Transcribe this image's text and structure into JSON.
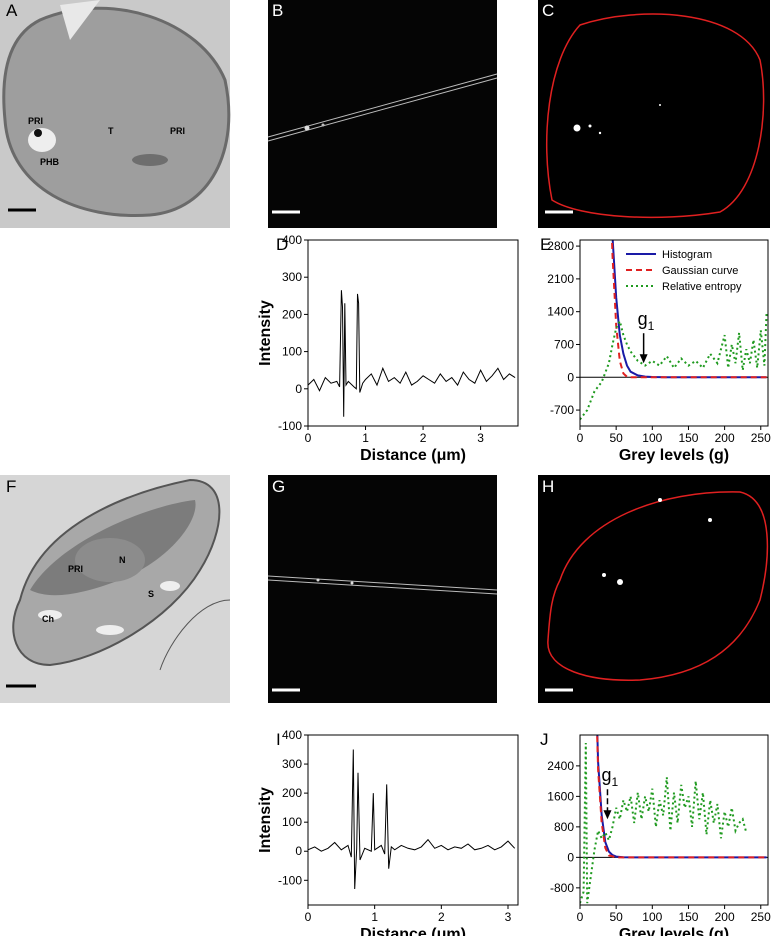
{
  "panels": [
    "A",
    "B",
    "C",
    "D",
    "E",
    "F",
    "G",
    "H",
    "I",
    "J"
  ],
  "micrograph_labels": {
    "A": [
      "PRI",
      "PHB",
      "T",
      "PRI"
    ],
    "F": [
      "N",
      "PRI",
      "S",
      "Ch"
    ]
  },
  "chart_data": [
    {
      "type": "line",
      "ylabel": "Intensity",
      "xlabel": "Distance (μm)",
      "xlim": [
        0,
        3.65
      ],
      "ylim": [
        -100,
        400
      ],
      "xticks": [
        0,
        1,
        2,
        3
      ],
      "yticks": [
        -100,
        0,
        100,
        200,
        300,
        400
      ],
      "series": [
        {
          "color": "#000000",
          "dash": "solid",
          "x": [
            0,
            0.1,
            0.2,
            0.3,
            0.4,
            0.5,
            0.55,
            0.58,
            0.6,
            0.62,
            0.64,
            0.66,
            0.7,
            0.8,
            0.84,
            0.86,
            0.88,
            0.9,
            0.95,
            1.0,
            1.1,
            1.2,
            1.3,
            1.4,
            1.5,
            1.6,
            1.7,
            1.8,
            1.9,
            2.0,
            2.1,
            2.2,
            2.3,
            2.4,
            2.5,
            2.6,
            2.7,
            2.8,
            2.9,
            3.0,
            3.1,
            3.2,
            3.3,
            3.4,
            3.5,
            3.6
          ],
          "values": [
            10,
            25,
            -5,
            30,
            15,
            20,
            5,
            265,
            220,
            -75,
            230,
            10,
            20,
            5,
            0,
            255,
            230,
            -10,
            15,
            25,
            40,
            10,
            55,
            20,
            30,
            15,
            45,
            10,
            20,
            35,
            25,
            15,
            40,
            20,
            30,
            10,
            45,
            25,
            15,
            50,
            20,
            35,
            55,
            25,
            40,
            30
          ]
        }
      ]
    },
    {
      "type": "line",
      "xlabel": "Grey levels (g)",
      "xlim": [
        0,
        260
      ],
      "ylim": [
        -1040,
        2930
      ],
      "xticks": [
        0,
        50,
        100,
        150,
        200,
        250
      ],
      "yticks": [
        -700,
        0,
        700,
        1400,
        2100,
        2800
      ],
      "legend": "upper right",
      "zero_line": true,
      "annotation": {
        "text": "g",
        "sub": "1",
        "x": 88,
        "y": 300
      },
      "series": [
        {
          "name": "Histogram",
          "color": "#1a1aa6",
          "dash": "solid",
          "x": [
            40,
            45,
            50,
            55,
            60,
            65,
            70,
            80,
            90,
            100,
            120,
            150,
            200,
            258
          ],
          "values": [
            6000,
            3000,
            1700,
            900,
            500,
            250,
            120,
            40,
            15,
            5,
            2,
            0,
            0,
            0
          ]
        },
        {
          "name": "Gaussian curve",
          "color": "#e02020",
          "dash": "dashed",
          "x": [
            40,
            45,
            50,
            55,
            60,
            65,
            70,
            100,
            258
          ],
          "values": [
            5000,
            2600,
            1100,
            350,
            80,
            10,
            0,
            0,
            0
          ]
        },
        {
          "name": "Relative entropy",
          "color": "#1f9a1f",
          "dash": "dotted",
          "x": [
            0,
            10,
            20,
            30,
            40,
            45,
            50,
            55,
            60,
            65,
            70,
            75,
            80,
            85,
            90,
            95,
            100,
            110,
            120,
            130,
            140,
            150,
            160,
            170,
            180,
            190,
            200,
            205,
            210,
            215,
            220,
            225,
            230,
            235,
            240,
            245,
            250,
            255,
            258
          ],
          "values": [
            -900,
            -700,
            -300,
            -100,
            300,
            700,
            1050,
            1200,
            900,
            700,
            550,
            450,
            350,
            300,
            250,
            300,
            350,
            250,
            450,
            200,
            400,
            250,
            350,
            200,
            500,
            300,
            900,
            200,
            700,
            300,
            950,
            150,
            600,
            300,
            800,
            200,
            1000,
            250,
            1400
          ]
        }
      ]
    },
    {
      "type": "line",
      "ylabel": "Intensity",
      "xlabel": "Distance (μm)",
      "xlim": [
        0,
        3.15
      ],
      "ylim": [
        -185,
        400
      ],
      "xticks": [
        0,
        1,
        2,
        3
      ],
      "yticks": [
        -100,
        0,
        100,
        200,
        300,
        400
      ],
      "series": [
        {
          "color": "#000000",
          "dash": "solid",
          "x": [
            0,
            0.1,
            0.2,
            0.3,
            0.4,
            0.5,
            0.6,
            0.65,
            0.68,
            0.7,
            0.73,
            0.75,
            0.78,
            0.85,
            0.95,
            0.98,
            1.0,
            1.1,
            1.15,
            1.18,
            1.21,
            1.25,
            1.3,
            1.4,
            1.5,
            1.6,
            1.7,
            1.8,
            1.9,
            2.0,
            2.1,
            2.2,
            2.3,
            2.4,
            2.5,
            2.6,
            2.7,
            2.8,
            2.9,
            3.0,
            3.1
          ],
          "values": [
            5,
            15,
            0,
            10,
            30,
            5,
            20,
            -20,
            350,
            -130,
            10,
            270,
            -30,
            10,
            0,
            200,
            5,
            20,
            -10,
            230,
            -60,
            15,
            5,
            20,
            10,
            5,
            15,
            40,
            10,
            20,
            5,
            15,
            10,
            25,
            5,
            10,
            20,
            5,
            15,
            35,
            10
          ]
        }
      ]
    },
    {
      "type": "line",
      "xlabel": "Grey levels (g)",
      "xlim": [
        0,
        260
      ],
      "ylim": [
        -1250,
        3210
      ],
      "xticks": [
        0,
        50,
        100,
        150,
        200,
        250
      ],
      "yticks": [
        -800,
        0,
        800,
        1600,
        2400
      ],
      "zero_line": true,
      "annotation": {
        "text": "g",
        "sub": "1",
        "x": 38,
        "y": 1000
      },
      "series": [
        {
          "color": "#1a1aa6",
          "dash": "solid",
          "x": [
            20,
            25,
            30,
            35,
            40,
            45,
            50,
            60,
            80,
            100,
            258
          ],
          "values": [
            6000,
            2500,
            1100,
            400,
            150,
            60,
            20,
            5,
            0,
            0,
            0
          ]
        },
        {
          "color": "#e02020",
          "dash": "dashed",
          "x": [
            20,
            25,
            30,
            35,
            40,
            50,
            258
          ],
          "values": [
            5800,
            2300,
            900,
            250,
            50,
            0,
            0
          ]
        },
        {
          "color": "#1f9a1f",
          "dash": "dotted",
          "x": [
            0,
            5,
            8,
            10,
            15,
            20,
            25,
            30,
            35,
            40,
            45,
            50,
            55,
            60,
            65,
            70,
            75,
            80,
            85,
            90,
            95,
            100,
            105,
            110,
            115,
            120,
            125,
            130,
            135,
            140,
            145,
            150,
            155,
            160,
            165,
            170,
            175,
            180,
            185,
            190,
            195,
            200,
            205,
            210,
            215,
            220,
            225,
            230
          ],
          "values": [
            -1200,
            -900,
            3000,
            -1200,
            -500,
            200,
            700,
            500,
            650,
            450,
            800,
            1300,
            1000,
            1500,
            1200,
            1600,
            900,
            1700,
            1000,
            1600,
            1200,
            1800,
            800,
            1500,
            1100,
            2100,
            700,
            1700,
            900,
            1900,
            1300,
            1600,
            800,
            2000,
            1000,
            1700,
            600,
            1500,
            900,
            1400,
            500,
            1200,
            800,
            1300,
            700,
            900,
            1000,
            650
          ]
        }
      ]
    }
  ]
}
